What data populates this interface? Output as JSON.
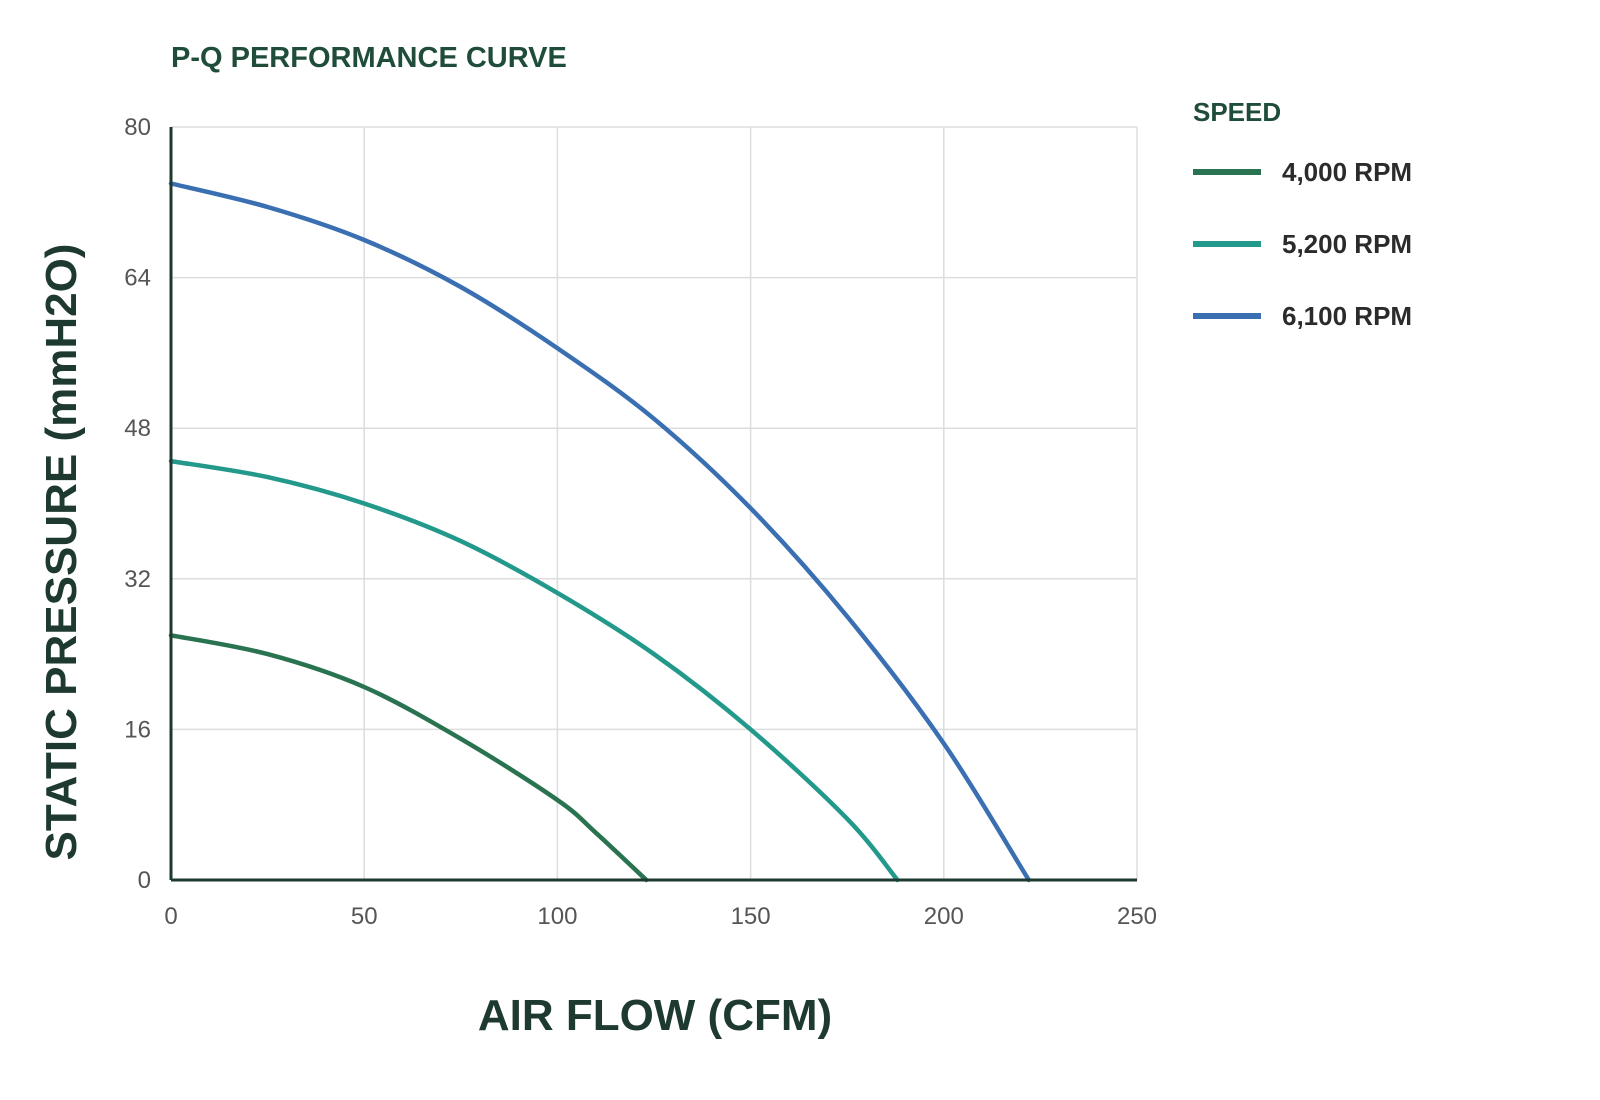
{
  "chart_data": {
    "type": "line",
    "title": "P-Q PERFORMANCE CURVE",
    "xlabel": "AIR FLOW (CFM)",
    "ylabel": "STATIC PRESSURE (mmH2O)",
    "xlim": [
      0,
      250
    ],
    "ylim": [
      0,
      80
    ],
    "xticks": [
      0,
      50,
      100,
      150,
      200,
      250
    ],
    "yticks": [
      0,
      16,
      32,
      48,
      64,
      80
    ],
    "grid": true,
    "legend": {
      "title": "SPEED",
      "position": "right"
    },
    "series": [
      {
        "name": "4,000 RPM",
        "color": "#2a7350",
        "x": [
          0,
          25,
          50,
          75,
          100,
          110,
          123
        ],
        "y": [
          26,
          24,
          20.5,
          15,
          8.5,
          5,
          0
        ]
      },
      {
        "name": "5,200 RPM",
        "color": "#22998a",
        "x": [
          0,
          25,
          50,
          75,
          100,
          125,
          150,
          175,
          188
        ],
        "y": [
          44.5,
          42.8,
          40,
          36,
          30.5,
          24,
          16,
          6.5,
          0
        ]
      },
      {
        "name": "6,100 RPM",
        "color": "#3a6fb2",
        "x": [
          0,
          25,
          50,
          75,
          100,
          125,
          150,
          175,
          200,
          222
        ],
        "y": [
          74,
          71.5,
          68,
          63,
          56.5,
          49,
          39.5,
          28,
          14.5,
          0
        ]
      }
    ]
  }
}
